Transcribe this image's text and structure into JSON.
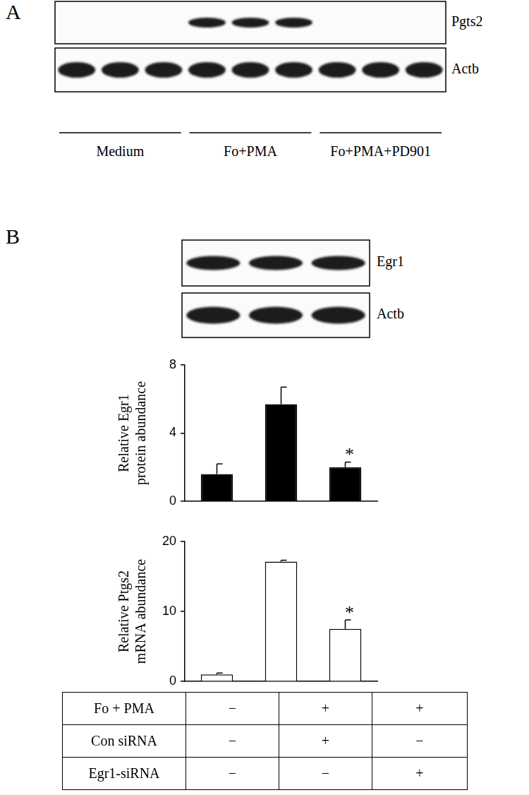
{
  "panels": [
    {
      "label": "A",
      "blot": {
        "rows": [
          {
            "label": "Pgts2",
            "bands": [
              false,
              false,
              false,
              true,
              true,
              true,
              false,
              false,
              false
            ]
          },
          {
            "label": "Actb",
            "bands": [
              true,
              true,
              true,
              true,
              true,
              true,
              true,
              true,
              true
            ]
          }
        ],
        "groups": [
          "Medium",
          "Fo+PMA",
          "Fo+PMA+PD901"
        ]
      }
    },
    {
      "label": "B",
      "blot": {
        "rows": [
          {
            "label": "Egr1",
            "bands": [
              true,
              true,
              true
            ]
          },
          {
            "label": "Actb",
            "bands": [
              true,
              true,
              true
            ]
          }
        ]
      }
    }
  ],
  "chart_data": [
    {
      "type": "bar",
      "y_label": [
        "Relative Egr1",
        "protein abundance"
      ],
      "categories": [
        null,
        null,
        null
      ],
      "values": [
        1.6,
        5.7,
        2.0
      ],
      "errors": [
        0.6,
        1.0,
        0.3
      ],
      "color": "#000000",
      "ylim": [
        0,
        8
      ],
      "yticks": [
        0,
        4,
        8
      ],
      "grid": false,
      "tick_labels": "y",
      "annotations": [
        {
          "text": "*",
          "index": 2
        }
      ]
    },
    {
      "type": "bar",
      "y_label": [
        "Relative Ptgs2",
        "mRNA abundance"
      ],
      "categories": [
        null,
        null,
        null
      ],
      "values": [
        1.0,
        17.1,
        7.5
      ],
      "errors": [
        0.2,
        0.2,
        1.3
      ],
      "color": "#ffffff",
      "ylim": [
        0,
        20
      ],
      "yticks": [
        0,
        10,
        20
      ],
      "grid": false,
      "tick_labels": "y",
      "annotations": [
        {
          "text": "*",
          "index": 2
        }
      ]
    }
  ],
  "table": {
    "rows": [
      [
        "Fo + PMA",
        "−",
        "+",
        "+"
      ],
      [
        "Con siRNA",
        "−",
        "+",
        "−"
      ],
      [
        "Egr1-siRNA",
        "−",
        "−",
        "+"
      ]
    ]
  }
}
